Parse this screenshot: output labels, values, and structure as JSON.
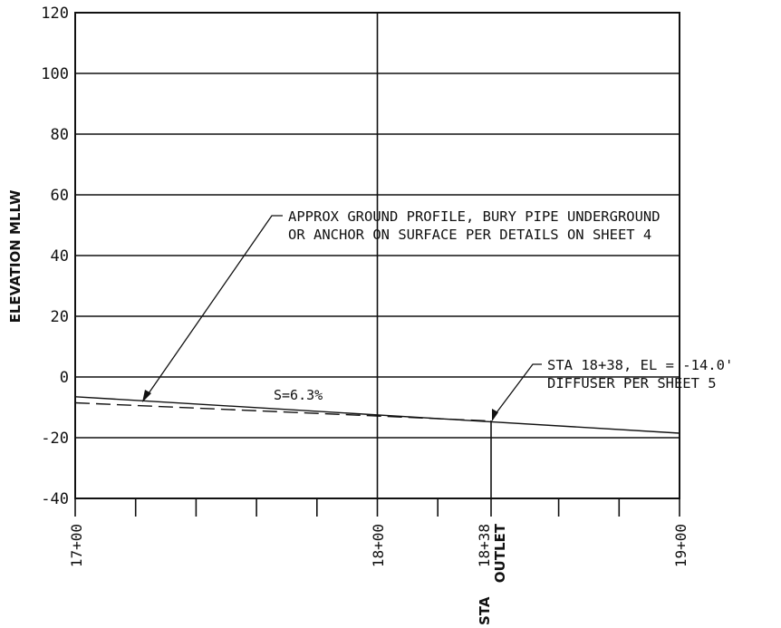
{
  "profile": {
    "y_axis_label": "ELEVATION MLLW",
    "y_ticks": [
      "120",
      "100",
      "80",
      "60",
      "40",
      "20",
      "0",
      "-20",
      "-40"
    ],
    "stations": [
      "17+00",
      "18+00",
      "18+38",
      "19+00"
    ],
    "sta_prefix": "STA",
    "outlet_label": "OUTLET",
    "slope_label": "S=6.3%",
    "note_ground_line1": "APPROX GROUND PROFILE, BURY PIPE UNDERGROUND",
    "note_ground_line2": "OR ANCHOR ON SURFACE PER DETAILS ON SHEET 4",
    "note_sta_line1": "STA 18+38, EL = -14.0'",
    "note_sta_line2": "DIFFUSER PER SHEET 5"
  },
  "chart_data": {
    "type": "line",
    "xlabel": "",
    "ylabel": "ELEVATION MLLW",
    "xlim": [
      1700,
      1900
    ],
    "ylim": [
      -40,
      120
    ],
    "x_tick_labels": [
      "17+00",
      "18+00",
      "18+38",
      "19+00"
    ],
    "y_tick_labels": [
      "120",
      "100",
      "80",
      "60",
      "40",
      "20",
      "0",
      "-20",
      "-40"
    ],
    "series": [
      {
        "x": [
          1700,
          1838,
          1900
        ],
        "y": [
          -6.5,
          -14.0,
          -18.5
        ]
      },
      {
        "x": [
          1700,
          1838
        ],
        "y": [
          -8.5,
          -14.5
        ]
      }
    ],
    "annotations": [
      "APPROX GROUND PROFILE, BURY PIPE UNDERGROUND OR ANCHOR ON SURFACE PER DETAILS ON SHEET 4",
      "STA 18+38, EL = -14.0' DIFFUSER PER SHEET 5",
      "S=6.3%"
    ]
  }
}
